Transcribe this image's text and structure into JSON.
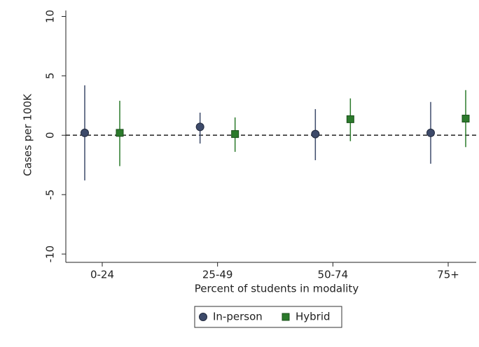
{
  "chart_data": {
    "type": "errorbar",
    "x_label": "Percent of students in modality",
    "y_label": "Cases per 100K",
    "categories": [
      "0-24",
      "25-49",
      "50-74",
      "75+"
    ],
    "series": [
      {
        "name": "In-person",
        "color": "#3d4a6a",
        "marker": "circle",
        "values": [
          0.2,
          0.7,
          0.1,
          0.2
        ],
        "lower": [
          -3.8,
          -0.7,
          -2.1,
          -2.4
        ],
        "upper": [
          4.2,
          1.9,
          2.2,
          2.8
        ]
      },
      {
        "name": "Hybrid",
        "color": "#2b7a2b",
        "marker": "square",
        "values": [
          0.2,
          0.1,
          1.35,
          1.4
        ],
        "lower": [
          -2.6,
          -1.4,
          -0.5,
          -1.0
        ],
        "upper": [
          2.9,
          1.5,
          3.1,
          3.8
        ]
      }
    ],
    "reference_line": 0,
    "ylim": [
      -10.7,
      10.5
    ],
    "yticks": [
      10,
      5,
      0,
      -5,
      -10
    ],
    "legend": "bottom"
  }
}
